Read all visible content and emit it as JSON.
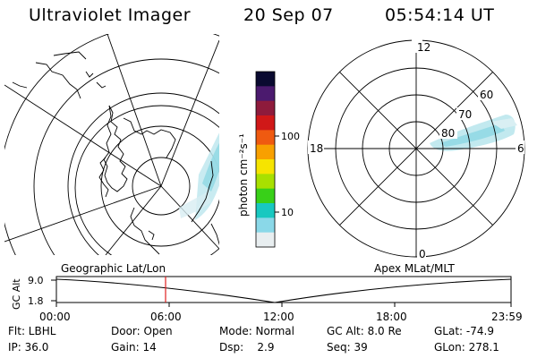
{
  "header": {
    "instrument": "Ultraviolet Imager",
    "date": "20 Sep 07",
    "time": "05:54:14 UT"
  },
  "left_map": {
    "label": "Geographic Lat/Lon"
  },
  "right_map": {
    "label": "Apex MLat/MLT",
    "mlt_labels": {
      "top": "12",
      "bottom": "0",
      "left": "18",
      "right": "6"
    },
    "lat_labels": [
      "60",
      "70",
      "80"
    ]
  },
  "colorbar": {
    "unit_label": "photon cm⁻²s⁻¹",
    "ticks": [
      "100",
      "10"
    ],
    "colors": [
      "#0a0a30",
      "#4b1a6e",
      "#8e1b3c",
      "#d01818",
      "#ef5a10",
      "#f8a000",
      "#f6e400",
      "#a8e000",
      "#38d018",
      "#18c8c0",
      "#8ad8e8",
      "#e8eef0"
    ]
  },
  "timeline": {
    "ylabel": "GC Alt",
    "y_ticks": [
      "9.0",
      "1.8"
    ],
    "x_ticks": [
      "00:00",
      "06:00",
      "12:00",
      "18:00",
      "23:59"
    ],
    "marker_color": "#e02020"
  },
  "info": {
    "row1": [
      "Flt: LBHL",
      "Door: Open",
      "Mode: Normal",
      "GC Alt: 8.0 Re",
      "GLat: -74.9"
    ],
    "row2": [
      "IP: 36.0",
      "Gain: 14",
      "Dsp:    2.9",
      "Seq: 39",
      "GLon: 278.1"
    ]
  }
}
